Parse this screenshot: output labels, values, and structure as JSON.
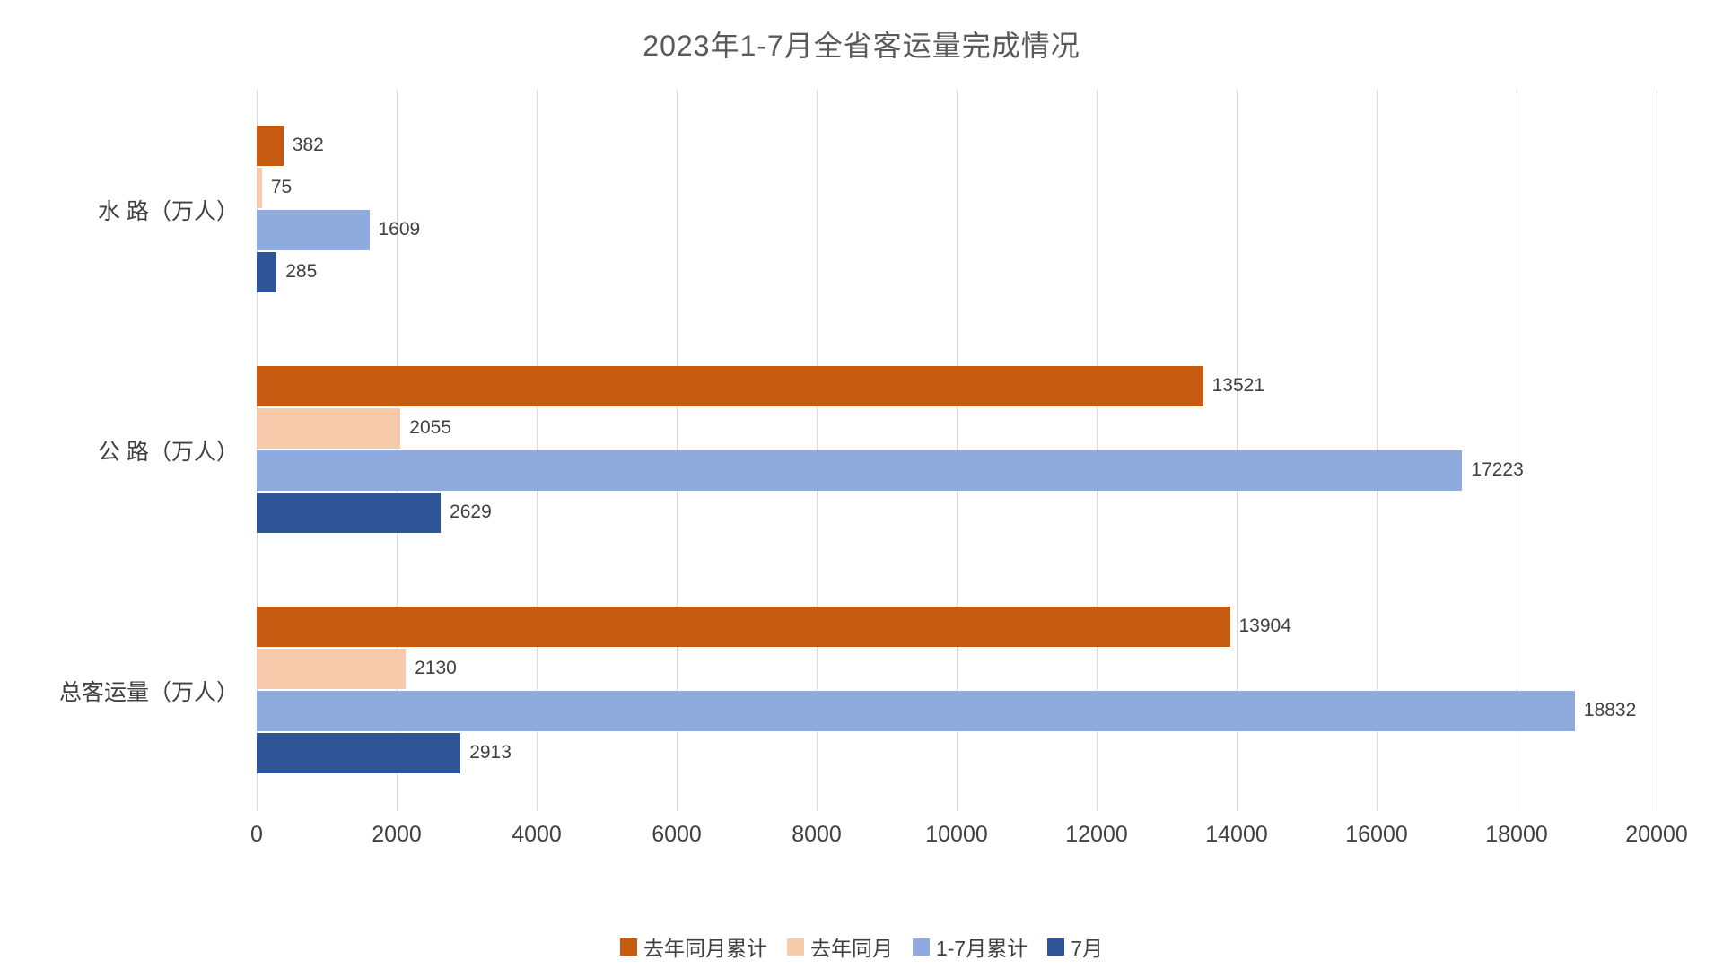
{
  "title": "2023年1-7月全省客运量完成情况",
  "chart_data": {
    "type": "bar",
    "orientation": "horizontal",
    "title": "2023年1-7月全省客运量完成情况",
    "categories": [
      "水 路（万人）",
      "公 路（万人）",
      "总客运量（万人）"
    ],
    "series": [
      {
        "name": "去年同月累计",
        "color": "#c55a11",
        "values": [
          382,
          13521,
          13904
        ]
      },
      {
        "name": "去年同月",
        "color": "#f8cbad",
        "values": [
          75,
          2055,
          2130
        ]
      },
      {
        "name": "1-7月累计",
        "color": "#8faadc",
        "values": [
          1609,
          17223,
          18832
        ]
      },
      {
        "name": "7月",
        "color": "#2f5597",
        "values": [
          285,
          2629,
          2913
        ]
      }
    ],
    "xlim": [
      0,
      20000
    ],
    "x_ticks": [
      0,
      2000,
      4000,
      6000,
      8000,
      10000,
      12000,
      14000,
      16000,
      18000,
      20000
    ],
    "grid": true,
    "gridline_color": "#d9d9d9",
    "legend_position": "bottom",
    "xlabel": "",
    "ylabel": ""
  }
}
